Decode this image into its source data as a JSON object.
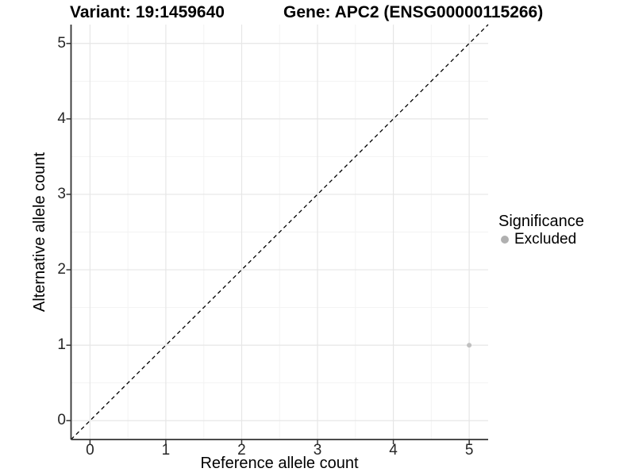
{
  "chart_data": {
    "type": "scatter",
    "title_left": "Variant: 19:1459640",
    "title_right": "Gene: APC2 (ENSG00000115266)",
    "xlabel": "Reference allele count",
    "ylabel": "Alternative allele count",
    "xlim": [
      -0.25,
      5.25
    ],
    "ylim": [
      -0.25,
      5.25
    ],
    "x_ticks": [
      0,
      1,
      2,
      3,
      4,
      5
    ],
    "y_ticks": [
      0,
      1,
      2,
      3,
      4,
      5
    ],
    "x_minor_ticks": [
      0.5,
      1.5,
      2.5,
      3.5,
      4.5
    ],
    "y_minor_ticks": [
      0.5,
      1.5,
      2.5,
      3.5,
      4.5
    ],
    "grid": "major+minor",
    "reference_line": {
      "type": "identity",
      "style": "dashed",
      "x1": -0.25,
      "y1": -0.25,
      "x2": 5.25,
      "y2": 5.25
    },
    "series": [
      {
        "name": "Excluded",
        "color": "#c0c0c0",
        "point_radius": 3,
        "points": [
          {
            "x": 5,
            "y": 1
          }
        ]
      }
    ],
    "legend": {
      "title": "Significance",
      "position": "right",
      "items": [
        {
          "label": "Excluded",
          "color": "#b0b0b0"
        }
      ]
    }
  },
  "colors": {
    "background": "#ffffff",
    "grid_major": "#e6e6e6",
    "grid_minor": "#f3f3f3",
    "axis_line": "#333333",
    "tick_text": "#262626",
    "reference_line": "#000000",
    "text": "#000000"
  }
}
